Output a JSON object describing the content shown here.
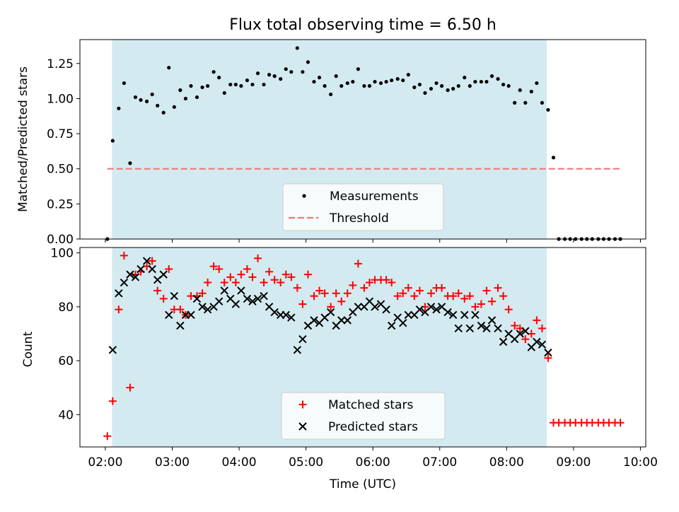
{
  "title": "Flux total observing time = 6.50 h",
  "chart_data": [
    {
      "type": "scatter",
      "ylabel": "Matched/Predicted stars",
      "ylim": [
        0,
        1.42
      ],
      "xlim": [
        1.62,
        10.08
      ],
      "yticks": [
        0.0,
        0.25,
        0.5,
        0.75,
        1.0,
        1.25
      ],
      "yticklabels": [
        "0.00",
        "0.25",
        "0.50",
        "0.75",
        "1.00",
        "1.25"
      ],
      "shaded_x_range": [
        2.1,
        8.6
      ],
      "shade_color": "#d3eaf0",
      "threshold": {
        "name": "Threshold",
        "y": 0.5,
        "x_start": 2.03,
        "x_end": 9.72,
        "color": "#f07878"
      },
      "legend": "lower-center",
      "series": [
        {
          "name": "Measurements",
          "color": "#000000",
          "x": [
            2.03,
            2.11,
            2.2,
            2.28,
            2.37,
            2.45,
            2.53,
            2.62,
            2.7,
            2.78,
            2.87,
            2.95,
            3.03,
            3.12,
            3.2,
            3.28,
            3.37,
            3.45,
            3.53,
            3.62,
            3.7,
            3.78,
            3.87,
            3.95,
            4.03,
            4.12,
            4.2,
            4.28,
            4.37,
            4.45,
            4.53,
            4.62,
            4.7,
            4.78,
            4.87,
            4.95,
            5.03,
            5.12,
            5.2,
            5.28,
            5.37,
            5.45,
            5.53,
            5.62,
            5.7,
            5.78,
            5.87,
            5.95,
            6.03,
            6.12,
            6.2,
            6.28,
            6.37,
            6.45,
            6.53,
            6.62,
            6.7,
            6.78,
            6.87,
            6.95,
            7.03,
            7.12,
            7.2,
            7.28,
            7.37,
            7.45,
            7.53,
            7.62,
            7.7,
            7.78,
            7.87,
            7.95,
            8.03,
            8.12,
            8.2,
            8.28,
            8.37,
            8.45,
            8.53,
            8.62,
            8.7,
            8.78,
            8.87,
            8.95,
            9.03,
            9.12,
            9.2,
            9.28,
            9.37,
            9.45,
            9.53,
            9.62,
            9.7
          ],
          "y": [
            0.0,
            0.7,
            0.93,
            1.11,
            0.54,
            1.01,
            0.99,
            0.98,
            1.03,
            0.95,
            0.9,
            1.22,
            0.94,
            1.06,
            1.0,
            1.09,
            1.01,
            1.08,
            1.09,
            1.19,
            1.15,
            1.04,
            1.1,
            1.1,
            1.09,
            1.13,
            1.1,
            1.18,
            1.1,
            1.17,
            1.16,
            1.14,
            1.21,
            1.19,
            1.36,
            1.19,
            1.26,
            1.12,
            1.15,
            1.09,
            1.03,
            1.16,
            1.09,
            1.11,
            1.12,
            1.21,
            1.09,
            1.09,
            1.12,
            1.11,
            1.12,
            1.13,
            1.14,
            1.13,
            1.17,
            1.08,
            1.1,
            1.04,
            1.07,
            1.11,
            1.09,
            1.06,
            1.07,
            1.09,
            1.15,
            1.09,
            1.12,
            1.12,
            1.12,
            1.16,
            1.14,
            1.1,
            1.09,
            0.97,
            1.06,
            0.97,
            1.05,
            1.11,
            0.97,
            0.92,
            0.58,
            0.0,
            0.0,
            0.0,
            0.0,
            0.0,
            0.0,
            0.0,
            0.0,
            0.0,
            0.0,
            0.0,
            0.0
          ]
        }
      ]
    },
    {
      "type": "scatter",
      "xlabel": "Time (UTC)",
      "ylabel": "Count",
      "ylim": [
        28,
        102
      ],
      "xlim": [
        1.62,
        10.08
      ],
      "yticks": [
        40,
        60,
        80,
        100
      ],
      "yticklabels": [
        "40",
        "60",
        "80",
        "100"
      ],
      "xticks": [
        2,
        3,
        4,
        5,
        6,
        7,
        8,
        9,
        10
      ],
      "xticklabels": [
        "02:00",
        "03:00",
        "04:00",
        "05:00",
        "06:00",
        "07:00",
        "08:00",
        "09:00",
        "10:00"
      ],
      "shaded_x_range": [
        2.1,
        8.6
      ],
      "shade_color": "#d3eaf0",
      "legend": "lower-center",
      "series": [
        {
          "name": "Matched stars",
          "color": "#ff0000",
          "marker": "plus",
          "x": [
            2.03,
            2.11,
            2.2,
            2.28,
            2.37,
            2.45,
            2.53,
            2.62,
            2.7,
            2.78,
            2.87,
            2.95,
            3.03,
            3.12,
            3.2,
            3.28,
            3.37,
            3.45,
            3.53,
            3.62,
            3.7,
            3.78,
            3.87,
            3.95,
            4.03,
            4.12,
            4.2,
            4.28,
            4.37,
            4.45,
            4.53,
            4.62,
            4.7,
            4.78,
            4.87,
            4.95,
            5.03,
            5.12,
            5.2,
            5.28,
            5.37,
            5.45,
            5.53,
            5.62,
            5.7,
            5.78,
            5.87,
            5.95,
            6.03,
            6.12,
            6.2,
            6.28,
            6.37,
            6.45,
            6.53,
            6.62,
            6.7,
            6.78,
            6.87,
            6.95,
            7.03,
            7.12,
            7.2,
            7.28,
            7.37,
            7.45,
            7.53,
            7.62,
            7.7,
            7.78,
            7.87,
            7.95,
            8.03,
            8.12,
            8.2,
            8.28,
            8.37,
            8.45,
            8.53,
            8.62,
            8.7,
            8.78,
            8.87,
            8.95,
            9.03,
            9.12,
            9.2,
            9.28,
            9.37,
            9.45,
            9.53,
            9.62,
            9.7
          ],
          "y": [
            32,
            45,
            79,
            99,
            50,
            92,
            93,
            95,
            97,
            86,
            83,
            94,
            79,
            79,
            77,
            84,
            84,
            85,
            89,
            95,
            94,
            89,
            91,
            89,
            92,
            94,
            91,
            98,
            89,
            93,
            90,
            89,
            92,
            91,
            87,
            81,
            92,
            84,
            86,
            85,
            80,
            85,
            82,
            85,
            88,
            96,
            87,
            89,
            90,
            90,
            90,
            89,
            84,
            85,
            87,
            84,
            86,
            80,
            85,
            87,
            87,
            84,
            84,
            85,
            83,
            84,
            80,
            81,
            86,
            82,
            87,
            84,
            79,
            73,
            72,
            68,
            70,
            75,
            72,
            61,
            37,
            37,
            37,
            37,
            37,
            37,
            37,
            37,
            37,
            37,
            37,
            37,
            37
          ]
        },
        {
          "name": "Predicted stars",
          "color": "#000000",
          "marker": "x",
          "x": [
            2.11,
            2.2,
            2.28,
            2.37,
            2.45,
            2.53,
            2.62,
            2.7,
            2.78,
            2.87,
            2.95,
            3.03,
            3.12,
            3.2,
            3.28,
            3.37,
            3.45,
            3.53,
            3.62,
            3.7,
            3.78,
            3.87,
            3.95,
            4.03,
            4.12,
            4.2,
            4.28,
            4.37,
            4.45,
            4.53,
            4.62,
            4.7,
            4.78,
            4.87,
            4.95,
            5.03,
            5.12,
            5.2,
            5.28,
            5.37,
            5.45,
            5.53,
            5.62,
            5.7,
            5.78,
            5.87,
            5.95,
            6.03,
            6.12,
            6.2,
            6.28,
            6.37,
            6.45,
            6.53,
            6.62,
            6.7,
            6.78,
            6.87,
            6.95,
            7.03,
            7.12,
            7.2,
            7.28,
            7.37,
            7.45,
            7.53,
            7.62,
            7.7,
            7.78,
            7.87,
            7.95,
            8.03,
            8.12,
            8.2,
            8.28,
            8.37,
            8.45,
            8.53,
            8.62
          ],
          "y": [
            64,
            85,
            89,
            92,
            91,
            94,
            97,
            94,
            90,
            92,
            77,
            84,
            73,
            77,
            77,
            83,
            80,
            79,
            80,
            82,
            86,
            83,
            81,
            86,
            83,
            82,
            83,
            84,
            80,
            78,
            77,
            77,
            76,
            64,
            68,
            73,
            75,
            74,
            76,
            78,
            73,
            75,
            75,
            78,
            80,
            80,
            82,
            80,
            81,
            79,
            73,
            76,
            74,
            77,
            77,
            79,
            78,
            80,
            79,
            80,
            78,
            77,
            72,
            77,
            72,
            77,
            73,
            72,
            75,
            72,
            67,
            70,
            68,
            70,
            71,
            65,
            67,
            66,
            63
          ]
        }
      ]
    }
  ]
}
